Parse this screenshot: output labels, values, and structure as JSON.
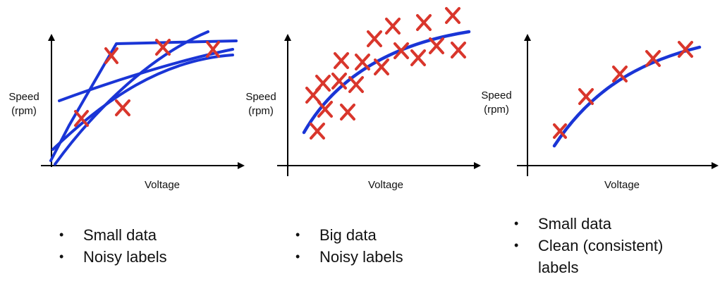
{
  "panels": [
    {
      "ylabel_line1": "Speed",
      "ylabel_line2": "(rpm)",
      "xlabel": "Voltage",
      "bullets": [
        "Small data",
        "Noisy labels"
      ]
    },
    {
      "ylabel_line1": "Speed",
      "ylabel_line2": "(rpm)",
      "xlabel": "Voltage",
      "bullets": [
        "Big data",
        "Noisy labels"
      ]
    },
    {
      "ylabel_line1": "Speed",
      "ylabel_line2": "(rpm)",
      "xlabel": "Voltage",
      "bullets": [
        "Small data",
        "Clean (consistent)",
        "labels"
      ]
    }
  ],
  "bullet_glyph": "•",
  "colors": {
    "marker": "#d9362c",
    "curve": "#1a35d6",
    "axis": "#000000"
  }
}
